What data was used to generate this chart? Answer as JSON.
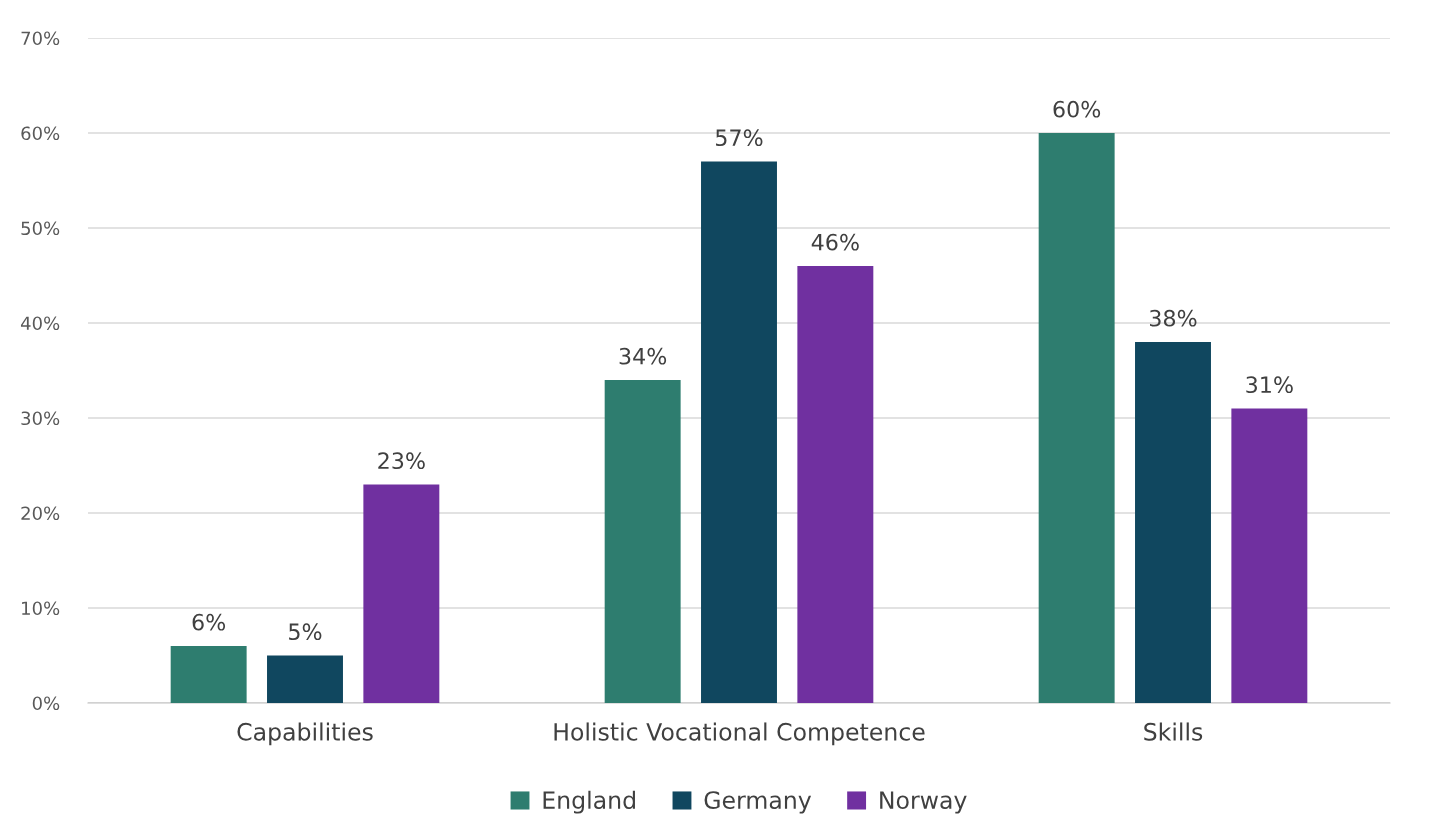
{
  "chart_data": {
    "type": "bar",
    "categories": [
      "Capabilities",
      "Holistic Vocational Competence",
      "Skills"
    ],
    "series": [
      {
        "name": "England",
        "color": "#2e7d6f",
        "values": [
          6,
          34,
          60
        ],
        "value_labels": [
          "6%",
          "34%",
          "60%"
        ]
      },
      {
        "name": "Germany",
        "color": "#10475f",
        "values": [
          5,
          57,
          38
        ],
        "value_labels": [
          "5%",
          "57%",
          "38%"
        ]
      },
      {
        "name": "Norway",
        "color": "#7030a0",
        "values": [
          23,
          46,
          31
        ],
        "value_labels": [
          "23%",
          "46%",
          "31%"
        ]
      }
    ],
    "ylim": [
      0,
      70
    ],
    "yticks": [
      {
        "value": 0,
        "label": "0%"
      },
      {
        "value": 10,
        "label": "10%"
      },
      {
        "value": 20,
        "label": "20%"
      },
      {
        "value": 30,
        "label": "30%"
      },
      {
        "value": 40,
        "label": "40%"
      },
      {
        "value": 50,
        "label": "50%"
      },
      {
        "value": 60,
        "label": "60%"
      },
      {
        "value": 70,
        "label": "70%"
      }
    ],
    "grid": "y",
    "legend": "bottom"
  }
}
